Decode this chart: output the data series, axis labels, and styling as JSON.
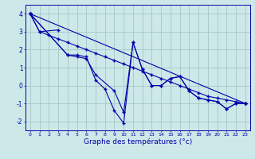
{
  "xlabel": "Graphe des températures (°c)",
  "background_color": "#cce8e8",
  "grid_color": "#aacccc",
  "line_color": "#0000aa",
  "xlim": [
    -0.5,
    23.5
  ],
  "ylim": [
    -2.5,
    4.5
  ],
  "yticks": [
    -2,
    -1,
    0,
    1,
    2,
    3,
    4
  ],
  "xticks": [
    0,
    1,
    2,
    3,
    4,
    5,
    6,
    7,
    8,
    9,
    10,
    11,
    12,
    13,
    14,
    15,
    16,
    17,
    18,
    19,
    20,
    21,
    22,
    23
  ],
  "line1_x": [
    0,
    1,
    3
  ],
  "line1_y": [
    4.0,
    3.0,
    3.1
  ],
  "line2_x": [
    0,
    4,
    5,
    6,
    7,
    9,
    10,
    11,
    12,
    13,
    14,
    15,
    16,
    17,
    18,
    19,
    20,
    21,
    22,
    23
  ],
  "line2_y": [
    4.0,
    1.7,
    1.6,
    1.5,
    0.6,
    -0.3,
    -1.5,
    2.4,
    0.9,
    0.0,
    0.0,
    0.4,
    0.5,
    -0.3,
    -0.7,
    -0.8,
    -0.9,
    -1.3,
    -1.0,
    -1.0
  ],
  "line3_x": [
    0,
    4,
    5,
    6,
    7,
    8,
    9,
    10,
    11,
    12,
    13,
    14,
    15,
    16,
    17,
    18,
    19,
    20,
    21,
    22,
    23
  ],
  "line3_y": [
    4.0,
    1.7,
    1.7,
    1.6,
    0.3,
    -0.2,
    -1.4,
    -2.1,
    2.4,
    0.9,
    0.0,
    0.0,
    0.4,
    0.5,
    -0.3,
    -0.7,
    -0.8,
    -0.9,
    -1.3,
    -1.0,
    -1.0
  ],
  "line4_x": [
    0,
    23
  ],
  "line4_y": [
    4.0,
    -1.0
  ],
  "line5_x": [
    0,
    1,
    2,
    3,
    4,
    5,
    6,
    7,
    8,
    9,
    10,
    11,
    12,
    13,
    14,
    15,
    16,
    17,
    18,
    19,
    20,
    21,
    22,
    23
  ],
  "line5_y": [
    4.0,
    3.0,
    2.8,
    2.6,
    2.4,
    2.2,
    2.0,
    1.8,
    1.6,
    1.4,
    1.2,
    1.0,
    0.8,
    0.6,
    0.4,
    0.2,
    0.0,
    -0.2,
    -0.4,
    -0.6,
    -0.7,
    -0.8,
    -0.9,
    -1.0
  ]
}
